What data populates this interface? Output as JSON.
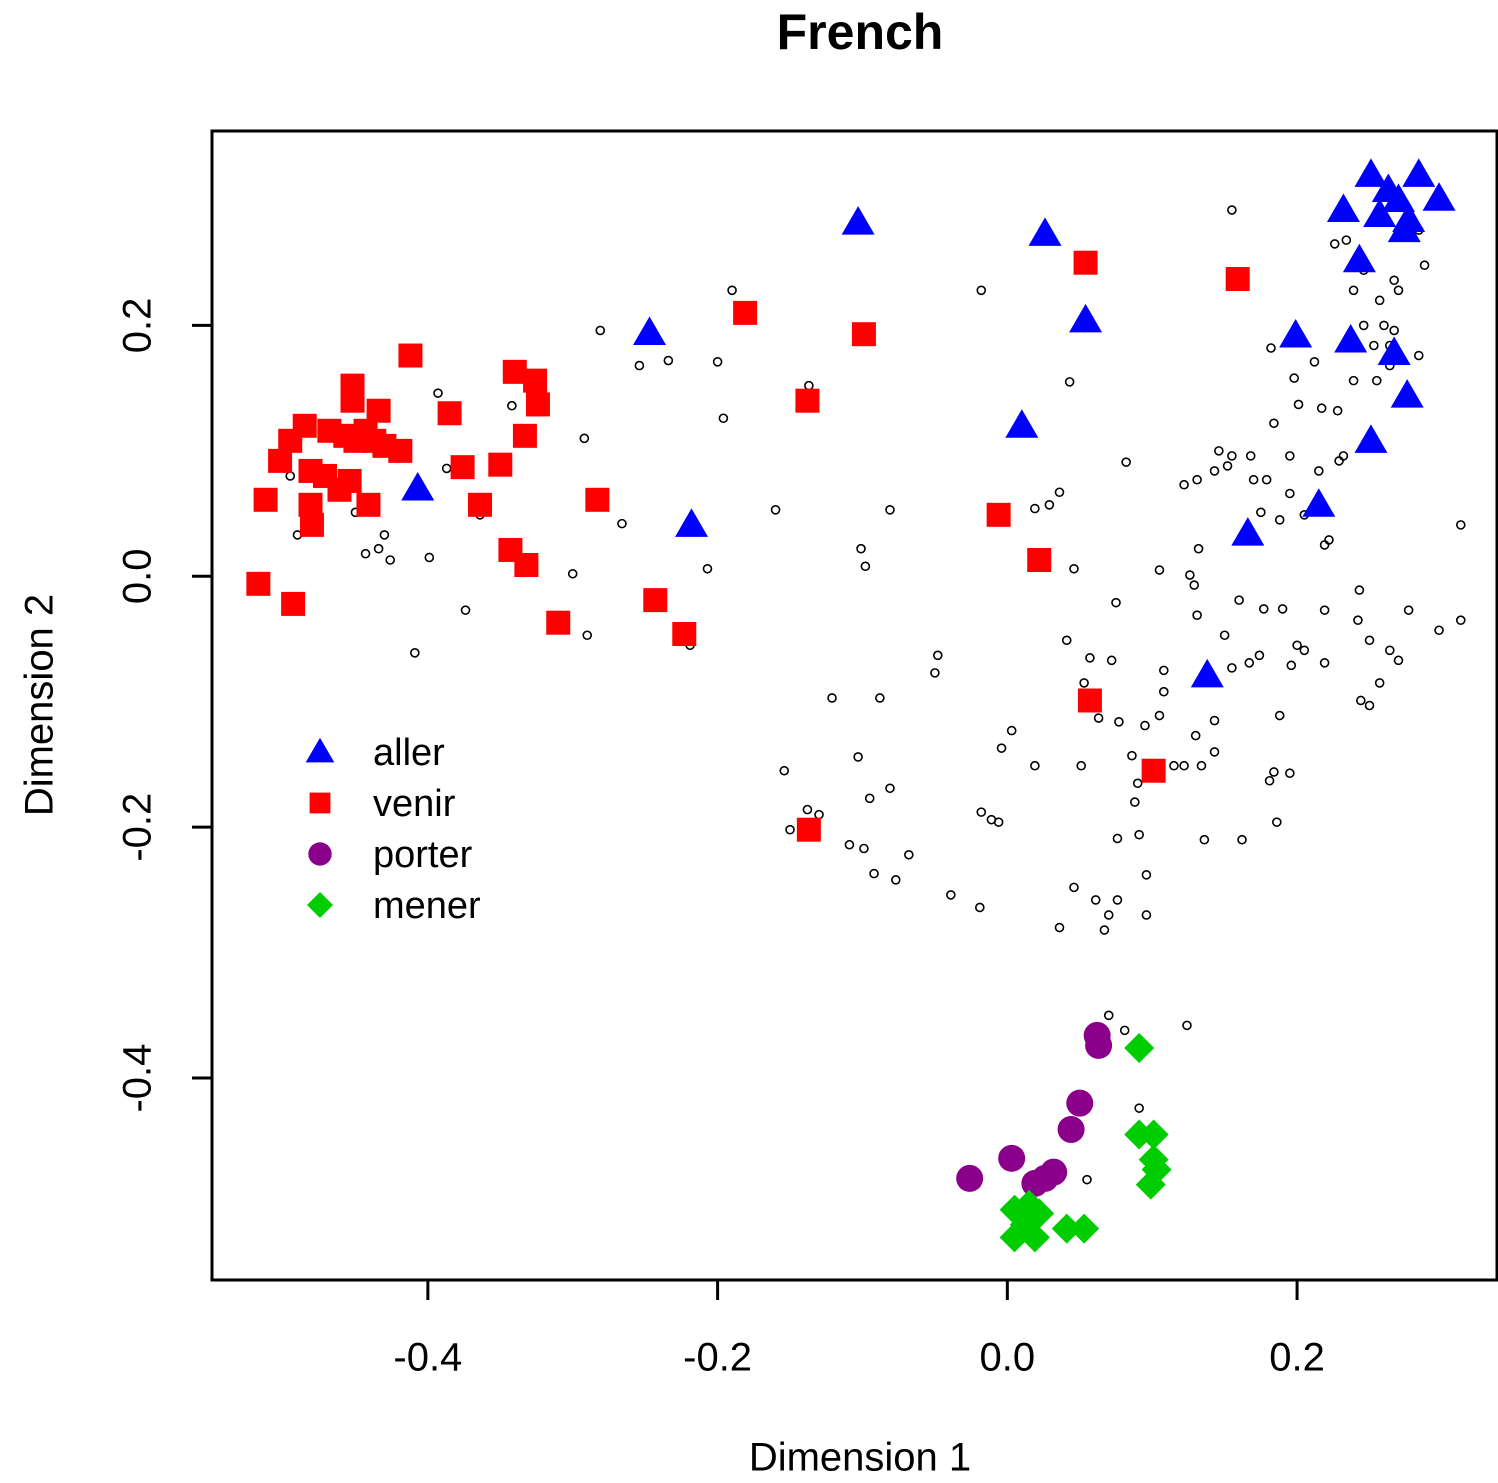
{
  "chart_data": {
    "type": "scatter",
    "title": "French",
    "xlabel": "Dimension 1",
    "ylabel": "Dimension 2",
    "xlim": [
      -0.549,
      0.338
    ],
    "ylim": [
      -0.561,
      0.355
    ],
    "xticks": [
      -0.4,
      -0.2,
      {
        "value": 0,
        "label": "0.0"
      },
      0.2
    ],
    "yticks": [
      -0.4,
      -0.2,
      {
        "value": 0,
        "label": "0.0"
      },
      0.2
    ],
    "legend": "left",
    "series": [
      {
        "color": "#000000",
        "marker": "open-circle",
        "x": [
          -0.414,
          -0.393,
          -0.387,
          -0.416,
          -0.43,
          -0.434,
          -0.443,
          -0.426,
          -0.399,
          -0.409,
          -0.49,
          -0.495,
          -0.45,
          -0.374,
          -0.364,
          -0.342,
          -0.292,
          -0.281,
          -0.254,
          -0.234,
          -0.266,
          -0.3,
          -0.29,
          -0.207,
          -0.219,
          -0.19,
          -0.2,
          -0.196,
          -0.16,
          -0.137,
          -0.101,
          -0.098,
          -0.081,
          -0.018,
          0.155,
          0.043,
          0.036,
          0.029,
          0.019,
          0.046,
          0.082,
          -0.048,
          -0.05,
          -0.121,
          -0.088,
          -0.154,
          -0.103,
          -0.138,
          -0.13,
          -0.15,
          -0.095,
          -0.081,
          -0.068,
          -0.109,
          -0.099,
          -0.092,
          -0.077,
          -0.039,
          -0.019,
          -0.018,
          -0.011,
          -0.006,
          -0.004,
          0.003,
          0.019,
          0.041,
          0.053,
          0.057,
          0.072,
          0.051,
          0.075,
          0.077,
          0.086,
          0.09,
          0.095,
          0.105,
          0.105,
          0.108,
          0.108,
          0.115,
          0.122,
          0.126,
          0.129,
          0.13,
          0.134,
          0.131,
          0.132,
          0.136,
          0.143,
          0.143,
          0.076,
          0.091,
          0.096,
          0.096,
          0.036,
          0.046,
          0.061,
          0.067,
          0.07,
          0.076,
          0.07,
          0.081,
          0.091,
          0.055,
          0.124,
          0.162,
          0.184,
          0.195,
          0.181,
          0.186,
          0.188,
          0.196,
          0.16,
          0.15,
          0.155,
          0.167,
          0.174,
          0.177,
          0.19,
          0.2,
          0.205,
          0.219,
          0.219,
          0.243,
          0.242,
          0.25,
          0.264,
          0.257,
          0.27,
          0.277,
          0.298,
          0.313,
          0.313,
          0.244,
          0.25,
          0.122,
          0.131,
          0.143,
          0.146,
          0.152,
          0.168,
          0.17,
          0.179,
          0.184,
          0.195,
          0.201,
          0.205,
          0.188,
          0.219,
          0.222,
          0.198,
          0.182,
          0.212,
          0.217,
          0.228,
          0.232,
          0.195,
          0.215,
          0.155,
          0.175,
          0.226,
          0.234,
          0.239,
          0.246,
          0.253,
          0.257,
          0.26,
          0.264,
          0.267,
          0.255,
          0.246,
          0.267,
          0.27,
          0.284,
          0.288,
          0.284,
          0.239,
          0.264,
          0.229,
          0.063,
          0.088
        ],
        "y": [
          0.18,
          0.146,
          0.086,
          0.096,
          0.033,
          0.022,
          0.018,
          0.013,
          0.015,
          -0.061,
          0.033,
          0.08,
          0.051,
          -0.027,
          0.049,
          0.136,
          0.11,
          0.196,
          0.168,
          0.172,
          0.042,
          0.002,
          -0.047,
          0.006,
          -0.055,
          0.228,
          0.171,
          0.126,
          0.053,
          0.152,
          0.022,
          0.008,
          0.053,
          0.228,
          0.292,
          0.155,
          0.067,
          0.057,
          0.054,
          0.006,
          0.091,
          -0.063,
          -0.077,
          -0.097,
          -0.097,
          -0.155,
          -0.144,
          -0.186,
          -0.19,
          -0.202,
          -0.177,
          -0.169,
          -0.222,
          -0.214,
          -0.217,
          -0.237,
          -0.242,
          -0.254,
          -0.264,
          -0.188,
          -0.194,
          -0.196,
          -0.137,
          -0.123,
          -0.151,
          -0.051,
          -0.085,
          -0.065,
          -0.067,
          -0.151,
          -0.021,
          -0.116,
          -0.143,
          -0.165,
          -0.119,
          -0.111,
          0.005,
          -0.075,
          -0.092,
          -0.151,
          -0.151,
          0.001,
          -0.007,
          -0.127,
          -0.151,
          -0.031,
          0.022,
          -0.21,
          -0.115,
          -0.14,
          -0.209,
          -0.206,
          -0.238,
          -0.27,
          -0.28,
          -0.248,
          -0.258,
          -0.282,
          -0.27,
          -0.258,
          -0.35,
          -0.362,
          -0.424,
          -0.481,
          -0.358,
          -0.21,
          -0.156,
          -0.157,
          -0.163,
          -0.196,
          -0.111,
          -0.071,
          -0.019,
          -0.047,
          -0.073,
          -0.069,
          -0.063,
          -0.026,
          -0.026,
          -0.055,
          -0.059,
          -0.027,
          -0.069,
          -0.011,
          -0.035,
          -0.051,
          -0.059,
          -0.085,
          -0.067,
          -0.027,
          -0.043,
          -0.035,
          0.041,
          -0.099,
          -0.103,
          0.073,
          0.077,
          0.084,
          0.1,
          0.088,
          0.096,
          0.077,
          0.077,
          0.122,
          0.096,
          0.137,
          0.049,
          0.045,
          0.025,
          0.029,
          0.158,
          0.182,
          0.171,
          0.134,
          0.132,
          0.096,
          0.066,
          0.084,
          0.096,
          0.051,
          0.265,
          0.268,
          0.228,
          0.244,
          0.184,
          0.22,
          0.2,
          0.184,
          0.196,
          0.156,
          0.2,
          0.236,
          0.228,
          0.176,
          0.248,
          0.276,
          0.156,
          0.168,
          0.092,
          -0.113,
          -0.18
        ]
      },
      {
        "name": "aller",
        "color": "#0000ff",
        "marker": "triangle",
        "x": [
          0.251,
          0.232,
          0.243,
          0.284,
          0.298,
          0.27,
          0.277,
          0.263,
          0.274,
          0.257,
          -0.103,
          0.026,
          0.054,
          -0.247,
          0.199,
          0.237,
          0.267,
          0.276,
          0.251,
          0.01,
          -0.407,
          -0.218,
          0.215,
          0.166,
          0.138
        ],
        "y": [
          0.32,
          0.292,
          0.252,
          0.32,
          0.301,
          0.3,
          0.284,
          0.308,
          0.276,
          0.288,
          0.282,
          0.273,
          0.204,
          0.194,
          0.192,
          0.188,
          0.178,
          0.144,
          0.108,
          0.12,
          0.07,
          0.041,
          0.057,
          0.034,
          -0.079
        ]
      },
      {
        "name": "venir",
        "color": "#ff0000",
        "marker": "square",
        "x": [
          -0.412,
          -0.517,
          -0.512,
          -0.493,
          -0.502,
          -0.495,
          -0.485,
          -0.481,
          -0.471,
          -0.461,
          -0.454,
          -0.468,
          -0.457,
          -0.45,
          -0.443,
          -0.437,
          -0.43,
          -0.419,
          -0.452,
          -0.452,
          -0.434,
          -0.441,
          -0.48,
          -0.481,
          -0.385,
          -0.376,
          -0.364,
          -0.35,
          -0.333,
          -0.34,
          -0.326,
          -0.324,
          -0.343,
          -0.332,
          -0.31,
          -0.283,
          -0.243,
          -0.223,
          -0.181,
          -0.138,
          -0.099,
          -0.137,
          -0.006,
          0.022,
          0.054,
          0.159,
          0.057,
          0.101
        ],
        "y": [
          0.176,
          -0.006,
          0.061,
          -0.022,
          0.092,
          0.108,
          0.12,
          0.084,
          0.08,
          0.069,
          0.076,
          0.116,
          0.112,
          0.108,
          0.116,
          0.108,
          0.104,
          0.1,
          0.152,
          0.14,
          0.132,
          0.057,
          0.041,
          0.057,
          0.13,
          0.087,
          0.057,
          0.089,
          0.112,
          0.163,
          0.156,
          0.137,
          0.021,
          0.009,
          -0.037,
          0.061,
          -0.019,
          -0.046,
          0.21,
          0.14,
          0.193,
          -0.202,
          0.049,
          0.013,
          0.25,
          0.237,
          -0.099,
          -0.155
        ]
      },
      {
        "name": "porter",
        "color": "#8b008b",
        "marker": "circle",
        "x": [
          0.062,
          0.063,
          0.05,
          0.044,
          0.003,
          -0.026,
          0.019,
          0.032,
          0.026
        ],
        "y": [
          -0.366,
          -0.374,
          -0.42,
          -0.441,
          -0.464,
          -0.48,
          -0.484,
          -0.475,
          -0.48
        ]
      },
      {
        "name": "mener",
        "color": "#00cd00",
        "marker": "diamond",
        "x": [
          0.091,
          0.091,
          0.101,
          0.101,
          0.103,
          0.099,
          0.005,
          0.015,
          0.022,
          0.012,
          0.005,
          0.019,
          0.041,
          0.053
        ],
        "y": [
          -0.376,
          -0.445,
          -0.445,
          -0.465,
          -0.473,
          -0.485,
          -0.505,
          -0.501,
          -0.508,
          -0.517,
          -0.527,
          -0.527,
          -0.52,
          -0.52
        ]
      }
    ]
  }
}
